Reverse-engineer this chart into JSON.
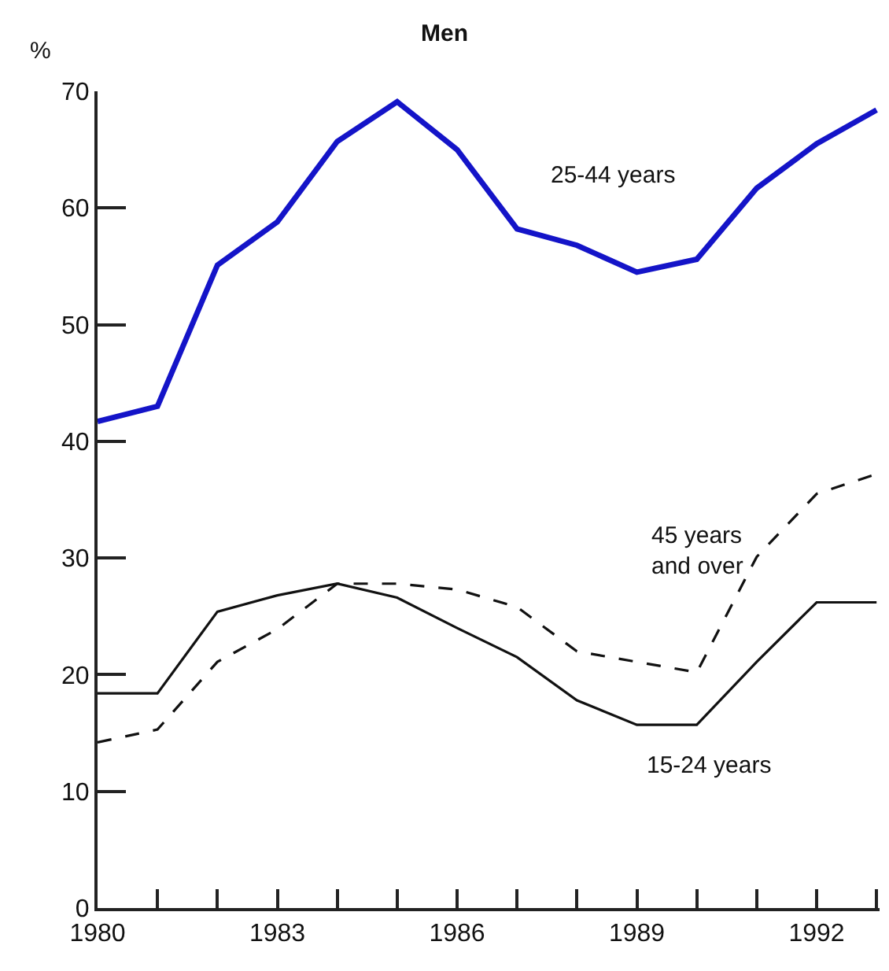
{
  "chart_data": {
    "type": "line",
    "title": "Men",
    "ylabel": "%",
    "x": [
      1980,
      1981,
      1982,
      1983,
      1984,
      1985,
      1986,
      1987,
      1988,
      1989,
      1990,
      1991,
      1992,
      1993
    ],
    "series": [
      {
        "name": "25-44 years",
        "color": "#1414c8",
        "line_style": "solid",
        "values": [
          41.7,
          43.0,
          55.1,
          58.8,
          65.7,
          69.1,
          65.0,
          58.2,
          56.8,
          54.5,
          55.6,
          61.7,
          65.5,
          68.4
        ]
      },
      {
        "name": "45 years and over",
        "color": "#111111",
        "line_style": "dashed",
        "values": [
          14.2,
          15.3,
          21.1,
          23.9,
          27.8,
          27.8,
          27.3,
          25.8,
          22.0,
          21.1,
          20.2,
          30.1,
          35.5,
          37.2
        ]
      },
      {
        "name": "15-24 years",
        "color": "#111111",
        "line_style": "solid",
        "values": [
          18.4,
          18.4,
          25.4,
          26.8,
          27.8,
          26.6,
          24.0,
          21.5,
          17.8,
          15.7,
          15.7,
          21.1,
          26.2,
          26.2
        ]
      }
    ],
    "xlim": [
      1980,
      1993.05
    ],
    "xticks": [
      1980,
      {
        "value": 1981,
        "label": null
      },
      {
        "value": 1982,
        "label": null
      },
      1983,
      {
        "value": 1984,
        "label": null
      },
      {
        "value": 1985,
        "label": null
      },
      1986,
      {
        "value": 1987,
        "label": null
      },
      {
        "value": 1988,
        "label": null
      },
      1989,
      {
        "value": 1990,
        "label": null
      },
      {
        "value": 1991,
        "label": null
      },
      1992,
      {
        "value": 1993,
        "label": null
      }
    ],
    "ylim": [
      0,
      70
    ],
    "yticks": [
      0,
      10,
      20,
      30,
      40,
      50,
      60,
      70
    ],
    "legend": false,
    "marker": "none"
  }
}
